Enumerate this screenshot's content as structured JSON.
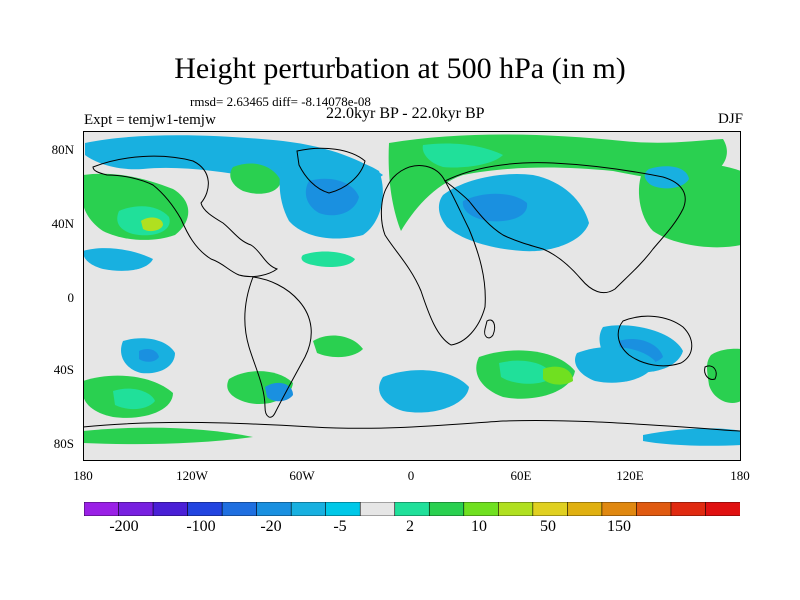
{
  "title": "Height perturbation at 500 hPa (in m)",
  "stats": "rmsd= 2.63465 diff= -8.14078e-08",
  "left_label": "Expt = temjw1-temjw",
  "center_label": "22.0kyr BP - 22.0kyr BP",
  "right_label": "DJF",
  "y_ticks": [
    "80N",
    "40N",
    "0",
    "40S",
    "80S"
  ],
  "x_ticks": [
    "180",
    "120W",
    "60W",
    "0",
    "60E",
    "120E",
    "180"
  ],
  "colorbar": {
    "labels": [
      "-200",
      "-100",
      "-20",
      "-5",
      "2",
      "10",
      "50",
      "150"
    ],
    "colors": [
      "#9a20e6",
      "#7820e0",
      "#4a1fd6",
      "#2244e0",
      "#1f6fe0",
      "#1a90e0",
      "#18b0e0",
      "#00c8e8",
      "#e6e6e6",
      "#20e09a",
      "#2ad050",
      "#70e020",
      "#b0e020",
      "#e0d020",
      "#e0b010",
      "#e08810",
      "#e05a10",
      "#e02a10",
      "#e01010"
    ]
  },
  "map": {
    "background": "#e6e6e6",
    "coast": "#000000"
  }
}
